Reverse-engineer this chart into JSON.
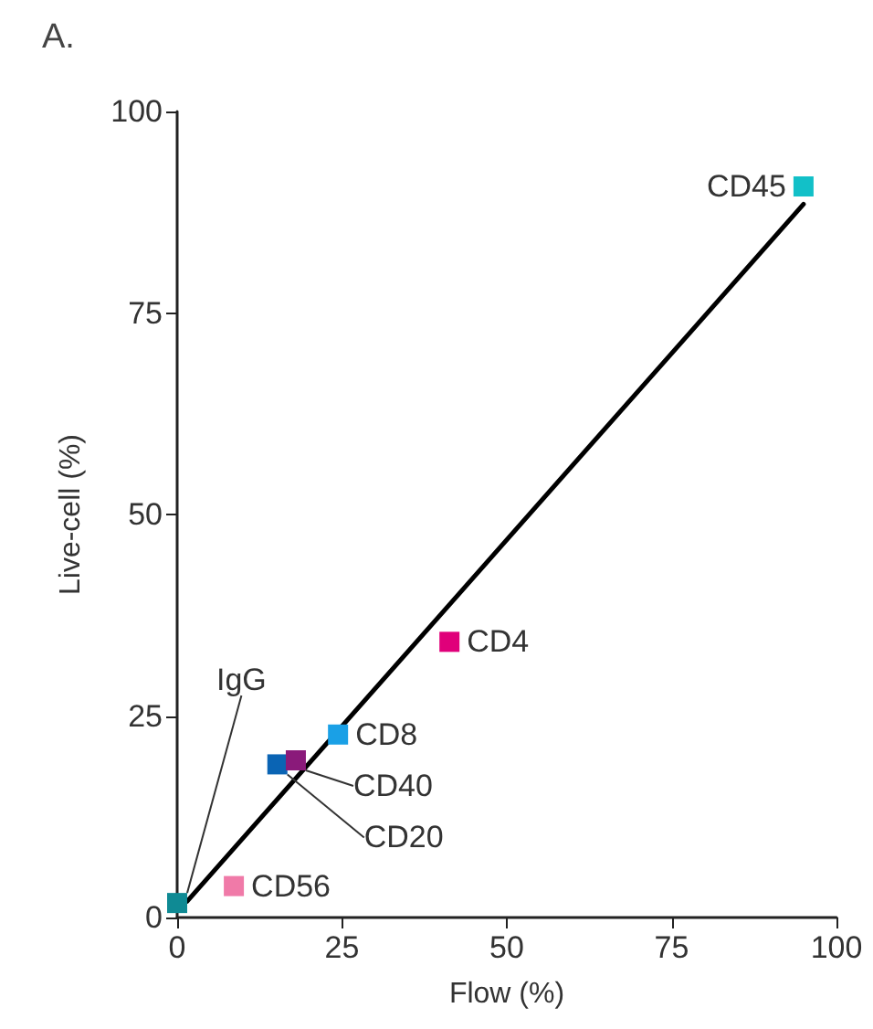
{
  "chart_data": {
    "type": "scatter",
    "title": "A.",
    "xlabel": "Flow (%)",
    "ylabel": "Live-cell (%)",
    "xlim": [
      0,
      100
    ],
    "ylim": [
      0,
      100
    ],
    "xticks": [
      0,
      25,
      50,
      75,
      100
    ],
    "yticks": [
      0,
      25,
      50,
      75,
      100
    ],
    "grid": false,
    "legend": false,
    "marker": "square",
    "series": [
      {
        "name": "IgG",
        "color": "#0f8a94",
        "x": [
          0
        ],
        "values": [
          1.8
        ]
      },
      {
        "name": "CD56",
        "color": "#f07aa8",
        "x": [
          8.6
        ],
        "values": [
          3.9
        ]
      },
      {
        "name": "CD20",
        "color": "#0a64b4",
        "x": [
          15.2
        ],
        "values": [
          19
        ]
      },
      {
        "name": "CD40",
        "color": "#8a1a7a",
        "x": [
          18
        ],
        "values": [
          19.5
        ]
      },
      {
        "name": "CD8",
        "color": "#1aa0e6",
        "x": [
          24.4
        ],
        "values": [
          22.7
        ]
      },
      {
        "name": "CD4",
        "color": "#e0007a",
        "x": [
          41.3
        ],
        "values": [
          34.2
        ]
      },
      {
        "name": "CD45",
        "color": "#12c0c8",
        "x": [
          95
        ],
        "values": [
          90.7
        ]
      },
      {
        "type": "line",
        "color": "#000000",
        "x": [
          1.5,
          95
        ],
        "values": [
          2,
          88.5
        ],
        "marker": "none"
      }
    ]
  }
}
